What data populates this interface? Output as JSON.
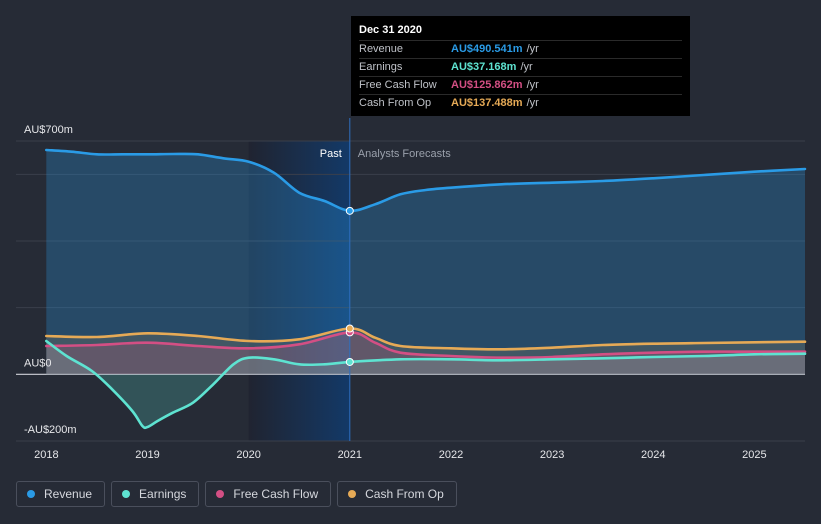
{
  "chart_data": {
    "type": "line",
    "x_ticks": [
      "2018",
      "2019",
      "2020",
      "2021",
      "2022",
      "2023",
      "2024",
      "2025"
    ],
    "x_range": [
      2017.7,
      2025.5
    ],
    "y_range": [
      -200,
      700
    ],
    "y_labels": [
      {
        "text": "AU$700m",
        "value": 700
      },
      {
        "text": "AU$0",
        "value": 0
      },
      {
        "text": "-AU$200m",
        "value": -200
      }
    ],
    "divider_x": 2021.0,
    "past_label": "Past",
    "forecast_label": "Analysts Forecasts",
    "series": [
      {
        "name": "Revenue",
        "color": "#2a9be6",
        "x": [
          2018.0,
          2018.25,
          2018.5,
          2018.75,
          2019.0,
          2019.25,
          2019.5,
          2019.75,
          2020.0,
          2020.25,
          2020.5,
          2020.75,
          2021.0,
          2021.25,
          2021.5,
          2021.75,
          2022.0,
          2022.5,
          2023.0,
          2023.5,
          2024.0,
          2024.5,
          2025.0,
          2025.5
        ],
        "y": [
          673,
          668,
          660,
          660,
          660,
          661,
          660,
          648,
          638,
          605,
          545,
          520,
          490.541,
          510,
          540,
          553,
          560,
          570,
          575,
          580,
          588,
          598,
          608,
          616
        ]
      },
      {
        "name": "Earnings",
        "color": "#5ee3d1",
        "x": [
          2018.0,
          2018.2,
          2018.45,
          2018.65,
          2018.85,
          2018.95,
          2019.0,
          2019.1,
          2019.25,
          2019.45,
          2019.65,
          2019.85,
          2020.0,
          2020.25,
          2020.5,
          2020.75,
          2021.0,
          2021.5,
          2022.0,
          2022.5,
          2023.0,
          2023.5,
          2024.0,
          2024.5,
          2025.0,
          2025.5
        ],
        "y": [
          100,
          55,
          10,
          -45,
          -110,
          -155,
          -158,
          -140,
          -115,
          -85,
          -30,
          30,
          50,
          45,
          30,
          30,
          37.168,
          45,
          45,
          42,
          45,
          48,
          52,
          55,
          60,
          62
        ]
      },
      {
        "name": "Free Cash Flow",
        "color": "#d34f84",
        "x": [
          2018.0,
          2018.5,
          2019.0,
          2019.5,
          2020.0,
          2020.5,
          2021.0,
          2021.25,
          2021.5,
          2022.0,
          2022.5,
          2023.0,
          2023.5,
          2024.0,
          2024.5,
          2025.0,
          2025.5
        ],
        "y": [
          85,
          88,
          95,
          85,
          78,
          90,
          125.862,
          95,
          65,
          55,
          50,
          52,
          60,
          65,
          68,
          68,
          68
        ]
      },
      {
        "name": "Cash From Op",
        "color": "#e6aa56",
        "x": [
          2018.0,
          2018.5,
          2019.0,
          2019.5,
          2020.0,
          2020.5,
          2021.0,
          2021.25,
          2021.5,
          2022.0,
          2022.5,
          2023.0,
          2023.5,
          2024.0,
          2024.5,
          2025.0,
          2025.5
        ],
        "y": [
          115,
          112,
          123,
          115,
          100,
          105,
          137.488,
          110,
          85,
          78,
          75,
          80,
          88,
          92,
          94,
          96,
          98
        ]
      }
    ]
  },
  "tooltip": {
    "date": "Dec 31 2020",
    "rows": [
      {
        "label": "Revenue",
        "value": "AU$490.541m",
        "unit": "/yr",
        "color": "#2a9be6"
      },
      {
        "label": "Earnings",
        "value": "AU$37.168m",
        "unit": "/yr",
        "color": "#5ee3d1"
      },
      {
        "label": "Free Cash Flow",
        "value": "AU$125.862m",
        "unit": "/yr",
        "color": "#d34f84"
      },
      {
        "label": "Cash From Op",
        "value": "AU$137.488m",
        "unit": "/yr",
        "color": "#e6aa56"
      }
    ]
  },
  "legend": [
    {
      "label": "Revenue",
      "color": "#2a9be6"
    },
    {
      "label": "Earnings",
      "color": "#5ee3d1"
    },
    {
      "label": "Free Cash Flow",
      "color": "#d34f84"
    },
    {
      "label": "Cash From Op",
      "color": "#e6aa56"
    }
  ]
}
